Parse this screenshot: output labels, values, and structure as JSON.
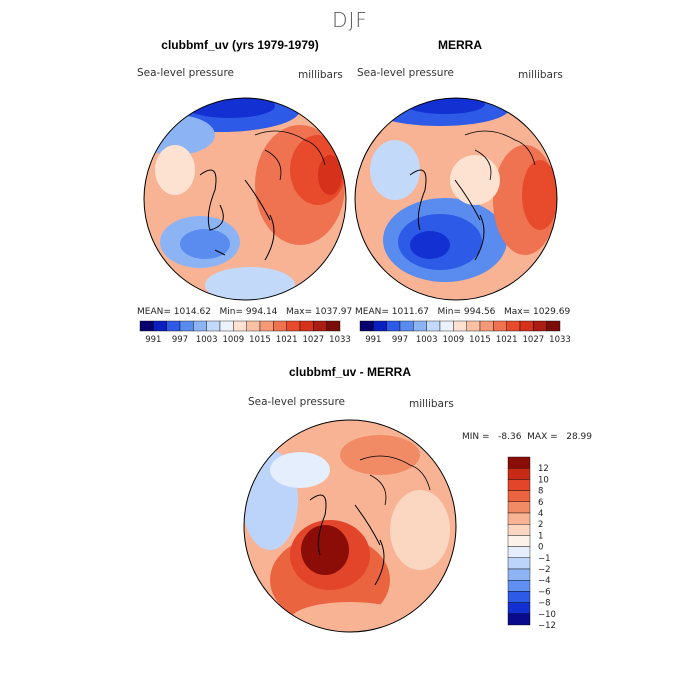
{
  "page_title": "DJF",
  "panels": [
    {
      "title": "clubbmf_uv (yrs 1979-1979)",
      "variable": "Sea-level pressure",
      "units": "millibars",
      "stats": "MEAN= 1014.62   Min= 994.14   Max= 1037.97"
    },
    {
      "title": "MERRA",
      "variable": "Sea-level pressure",
      "units": "millibars",
      "stats": "MEAN= 1011.67   Min= 994.56   Max= 1029.69"
    },
    {
      "title": "clubbmf_uv - MERRA",
      "variable": "Sea-level pressure",
      "units": "millibars",
      "stats": "MIN =   -8.36  MAX =   28.99"
    }
  ],
  "top_colorbar": {
    "colors": [
      "#08006e",
      "#0a1fc0",
      "#2d5ae6",
      "#5a8cf0",
      "#8cb4f5",
      "#c3d9fa",
      "#ebf2fc",
      "#fde2d2",
      "#f9c0a4",
      "#f59a78",
      "#ef7350",
      "#e84b2c",
      "#d5311b",
      "#a91d12",
      "#7a0d0a"
    ],
    "labels": [
      "991",
      "997",
      "1003",
      "1009",
      "1015",
      "1021",
      "1027",
      "1033"
    ]
  },
  "diff_colorbar": {
    "colors": [
      "#0a0a8c",
      "#1330d2",
      "#2d5ae6",
      "#5f8ff0",
      "#8fb4f5",
      "#bcd4fa",
      "#e4eefc",
      "#fdf2ea",
      "#fbd6c0",
      "#f7b394",
      "#f18b66",
      "#ea6440",
      "#e2452a",
      "#c92a18",
      "#8c0c08"
    ],
    "labels": [
      "12",
      "10",
      "8",
      "6",
      "4",
      "2",
      "1",
      "0",
      "−1",
      "−2",
      "−4",
      "−6",
      "−8",
      "−10",
      "−12"
    ]
  }
}
